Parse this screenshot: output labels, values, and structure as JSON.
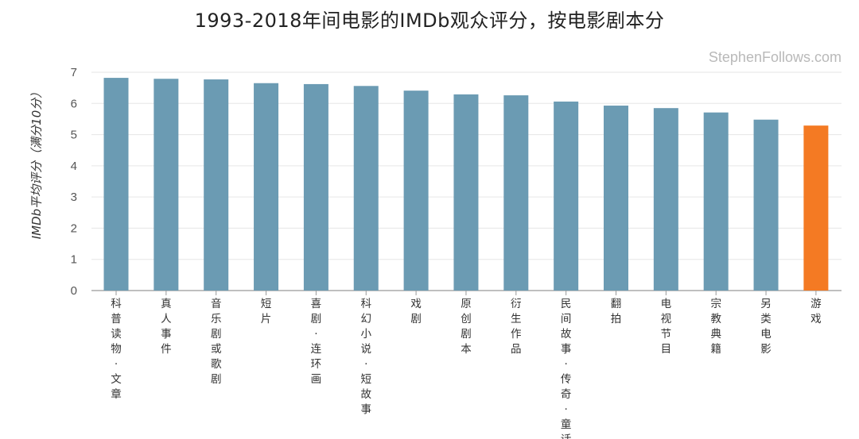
{
  "chart_data": {
    "type": "bar",
    "title": "1993-2018年间电影的IMDb观众评分，按电影剧本分",
    "xlabel": "",
    "ylabel": "IMDb平均评分（满分10分）",
    "ylim": [
      0,
      7
    ],
    "yticks": [
      "0",
      "1",
      "2",
      "3",
      "4",
      "5",
      "6",
      "7"
    ],
    "grid": true,
    "categories": [
      "科普读物·文章",
      "真人事件",
      "音乐剧或歌剧",
      "短片",
      "喜剧·连环画",
      "科幻小说·短故事",
      "戏剧",
      "原创剧本",
      "衍生作品",
      "民间故事·传奇·童话",
      "翻拍",
      "电视节目",
      "宗教典籍",
      "另类电影",
      "游戏"
    ],
    "values": [
      6.82,
      6.79,
      6.77,
      6.65,
      6.62,
      6.56,
      6.41,
      6.29,
      6.26,
      6.06,
      5.93,
      5.85,
      5.71,
      5.48,
      5.29
    ],
    "colors": [
      "#6b9bb3",
      "#6b9bb3",
      "#6b9bb3",
      "#6b9bb3",
      "#6b9bb3",
      "#6b9bb3",
      "#6b9bb3",
      "#6b9bb3",
      "#6b9bb3",
      "#6b9bb3",
      "#6b9bb3",
      "#6b9bb3",
      "#6b9bb3",
      "#6b9bb3",
      "#f47a23"
    ],
    "watermark": "StephenFollows.com"
  }
}
